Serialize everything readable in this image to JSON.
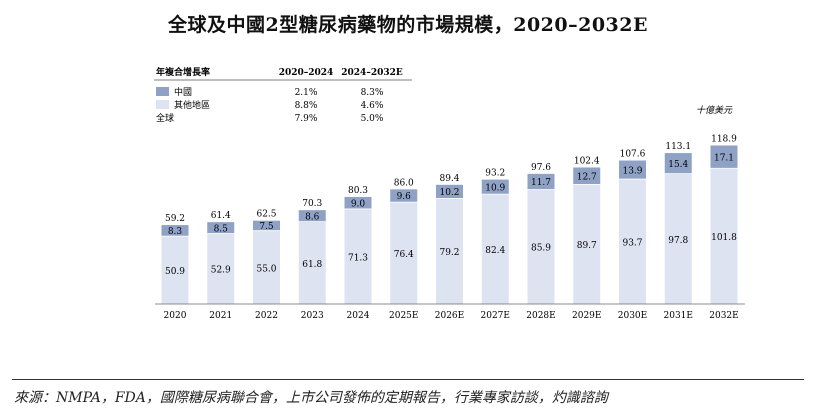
{
  "title": "全球及中國2型糖尿病藥物的市場規模，2020–2032E",
  "unit_label": "十億美元",
  "source": "來源：NMPA，FDA，國際糖尿病聯合會，上市公司發佈的定期報告，行業專家訪談，灼識諮詢",
  "cagr_table": {
    "header": [
      "年複合增長率",
      "2020–2024",
      "2024–2032E"
    ],
    "rows": [
      {
        "label": "中國",
        "swatch": "#8fa2c6",
        "values": [
          "2.1%",
          "8.3%"
        ]
      },
      {
        "label": "其他地區",
        "swatch": "#dde3f0",
        "values": [
          "8.8%",
          "4.6%"
        ]
      },
      {
        "label": "全球",
        "swatch": null,
        "values": [
          "7.9%",
          "5.0%"
        ]
      }
    ]
  },
  "colors": {
    "china": "#8fa2c6",
    "other": "#dde3f0"
  },
  "chart_data": {
    "type": "bar",
    "stacked": true,
    "categories": [
      "2020",
      "2021",
      "2022",
      "2023",
      "2024",
      "2025E",
      "2026E",
      "2027E",
      "2028E",
      "2029E",
      "2030E",
      "2031E",
      "2032E"
    ],
    "series": [
      {
        "name": "其他地區",
        "values": [
          50.9,
          52.9,
          55.0,
          61.8,
          71.3,
          76.4,
          79.2,
          82.4,
          85.9,
          89.7,
          93.7,
          97.8,
          101.8
        ]
      },
      {
        "name": "中國",
        "values": [
          8.3,
          8.5,
          7.5,
          8.6,
          9.0,
          9.6,
          10.2,
          10.9,
          11.7,
          12.7,
          13.9,
          15.4,
          17.1
        ]
      }
    ],
    "totals": [
      59.2,
      61.4,
      62.5,
      70.3,
      80.3,
      86.0,
      89.4,
      93.2,
      97.6,
      102.4,
      107.6,
      113.1,
      118.9
    ],
    "ylim": [
      0,
      120
    ]
  }
}
